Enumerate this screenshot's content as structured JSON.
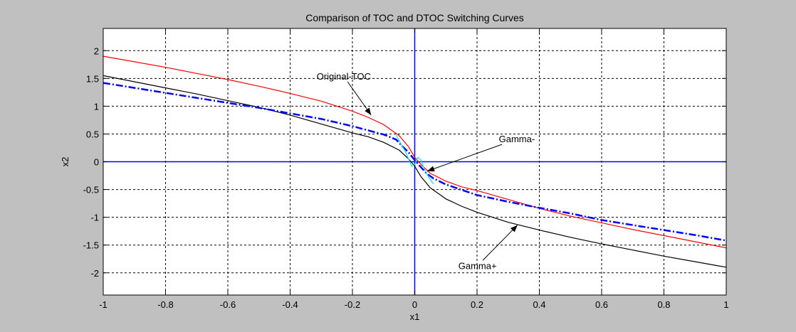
{
  "chart_data": {
    "type": "line",
    "title": "Comparison of TOC and DTOC Switching Curves",
    "xlabel": "x1",
    "ylabel": "x2",
    "xlim": [
      -1,
      1
    ],
    "ylim": [
      -2.4,
      2.4
    ],
    "xticks": [
      -1,
      -0.8,
      -0.6,
      -0.4,
      -0.2,
      0,
      0.2,
      0.4,
      0.6,
      0.8,
      1
    ],
    "xtick_labels": [
      "-1",
      "-0.8",
      "-0.6",
      "-0.4",
      "-0.2",
      "0",
      "0.2",
      "0.4",
      "0.6",
      "0.8",
      "1"
    ],
    "yticks": [
      2,
      1.5,
      1,
      0.5,
      0,
      -0.5,
      -1,
      -1.5,
      -2
    ],
    "ytick_labels": [
      "2",
      "1.5",
      "1",
      "0.5",
      "0",
      "-0.5",
      "-1",
      "-1.5",
      "-2"
    ],
    "grid": true,
    "grid_style": "dashed",
    "plot_background": "#ffffff",
    "figure_background": "#c0c0c0",
    "series": [
      {
        "color": "#ff0000",
        "style": "solid",
        "x": [
          -1,
          -0.9,
          -0.8,
          -0.7,
          -0.6,
          -0.5,
          -0.4,
          -0.3,
          -0.2,
          -0.15,
          -0.1,
          -0.05,
          -0.02,
          0,
          0.02,
          0.05,
          0.1,
          0.15,
          0.2,
          0.3,
          0.4,
          0.5,
          0.6,
          0.7,
          0.8,
          0.9,
          1
        ],
        "y": [
          1.9,
          1.8,
          1.7,
          1.59,
          1.48,
          1.36,
          1.23,
          1.09,
          0.91,
          0.8,
          0.67,
          0.47,
          0.27,
          0.08,
          -0.05,
          -0.21,
          -0.35,
          -0.45,
          -0.52,
          -0.68,
          -0.84,
          -0.98,
          -1.1,
          -1.22,
          -1.33,
          -1.44,
          -1.55
        ]
      },
      {
        "color": "#000000",
        "style": "solid",
        "x": [
          -1,
          -0.9,
          -0.8,
          -0.7,
          -0.6,
          -0.5,
          -0.4,
          -0.3,
          -0.2,
          -0.15,
          -0.1,
          -0.05,
          -0.02,
          0,
          0.02,
          0.05,
          0.1,
          0.15,
          0.2,
          0.3,
          0.4,
          0.5,
          0.6,
          0.7,
          0.8,
          0.9,
          1
        ],
        "y": [
          1.55,
          1.44,
          1.33,
          1.22,
          1.1,
          0.98,
          0.84,
          0.68,
          0.52,
          0.45,
          0.35,
          0.21,
          0.05,
          -0.08,
          -0.27,
          -0.47,
          -0.67,
          -0.8,
          -0.91,
          -1.09,
          -1.23,
          -1.36,
          -1.48,
          -1.59,
          -1.7,
          -1.8,
          -1.9
        ]
      },
      {
        "color": "#0000ff",
        "style": "dashdot",
        "x": [
          -1,
          -0.9,
          -0.8,
          -0.7,
          -0.6,
          -0.5,
          -0.4,
          -0.3,
          -0.2,
          -0.1,
          -0.06,
          -0.04,
          -0.02,
          0,
          0.02,
          0.04,
          0.06,
          0.1,
          0.2,
          0.3,
          0.4,
          0.5,
          0.6,
          0.7,
          0.8,
          0.9,
          1
        ],
        "y": [
          1.42,
          1.33,
          1.24,
          1.15,
          1.06,
          0.97,
          0.87,
          0.77,
          0.64,
          0.49,
          0.4,
          0.28,
          0.17,
          0.03,
          -0.1,
          -0.22,
          -0.3,
          -0.41,
          -0.6,
          -0.72,
          -0.83,
          -0.93,
          -1.05,
          -1.14,
          -1.23,
          -1.32,
          -1.42
        ]
      },
      {
        "color": "#00e5ee",
        "style": "solid",
        "x": [
          -0.06,
          -0.045,
          -0.03,
          -0.02,
          -0.01,
          0,
          0.01,
          0.02,
          0.03,
          0.045,
          0.06
        ],
        "y": [
          0.48,
          0.33,
          0.18,
          0.05,
          -0.08,
          -0.05,
          0.08,
          0.03,
          -0.12,
          -0.28,
          -0.4
        ]
      }
    ],
    "annotations": [
      {
        "text": "Original-TOC",
        "text_x": -0.315,
        "text_y": 1.48,
        "arrow_to": [
          -0.14,
          0.84
        ]
      },
      {
        "text": "Gamma-",
        "text_x": 0.27,
        "text_y": 0.35,
        "arrow_to": [
          0.04,
          -0.17
        ]
      },
      {
        "text": "Gamma+",
        "text_x": 0.14,
        "text_y": -1.93,
        "arrow_to": [
          0.33,
          -1.14
        ]
      }
    ]
  }
}
